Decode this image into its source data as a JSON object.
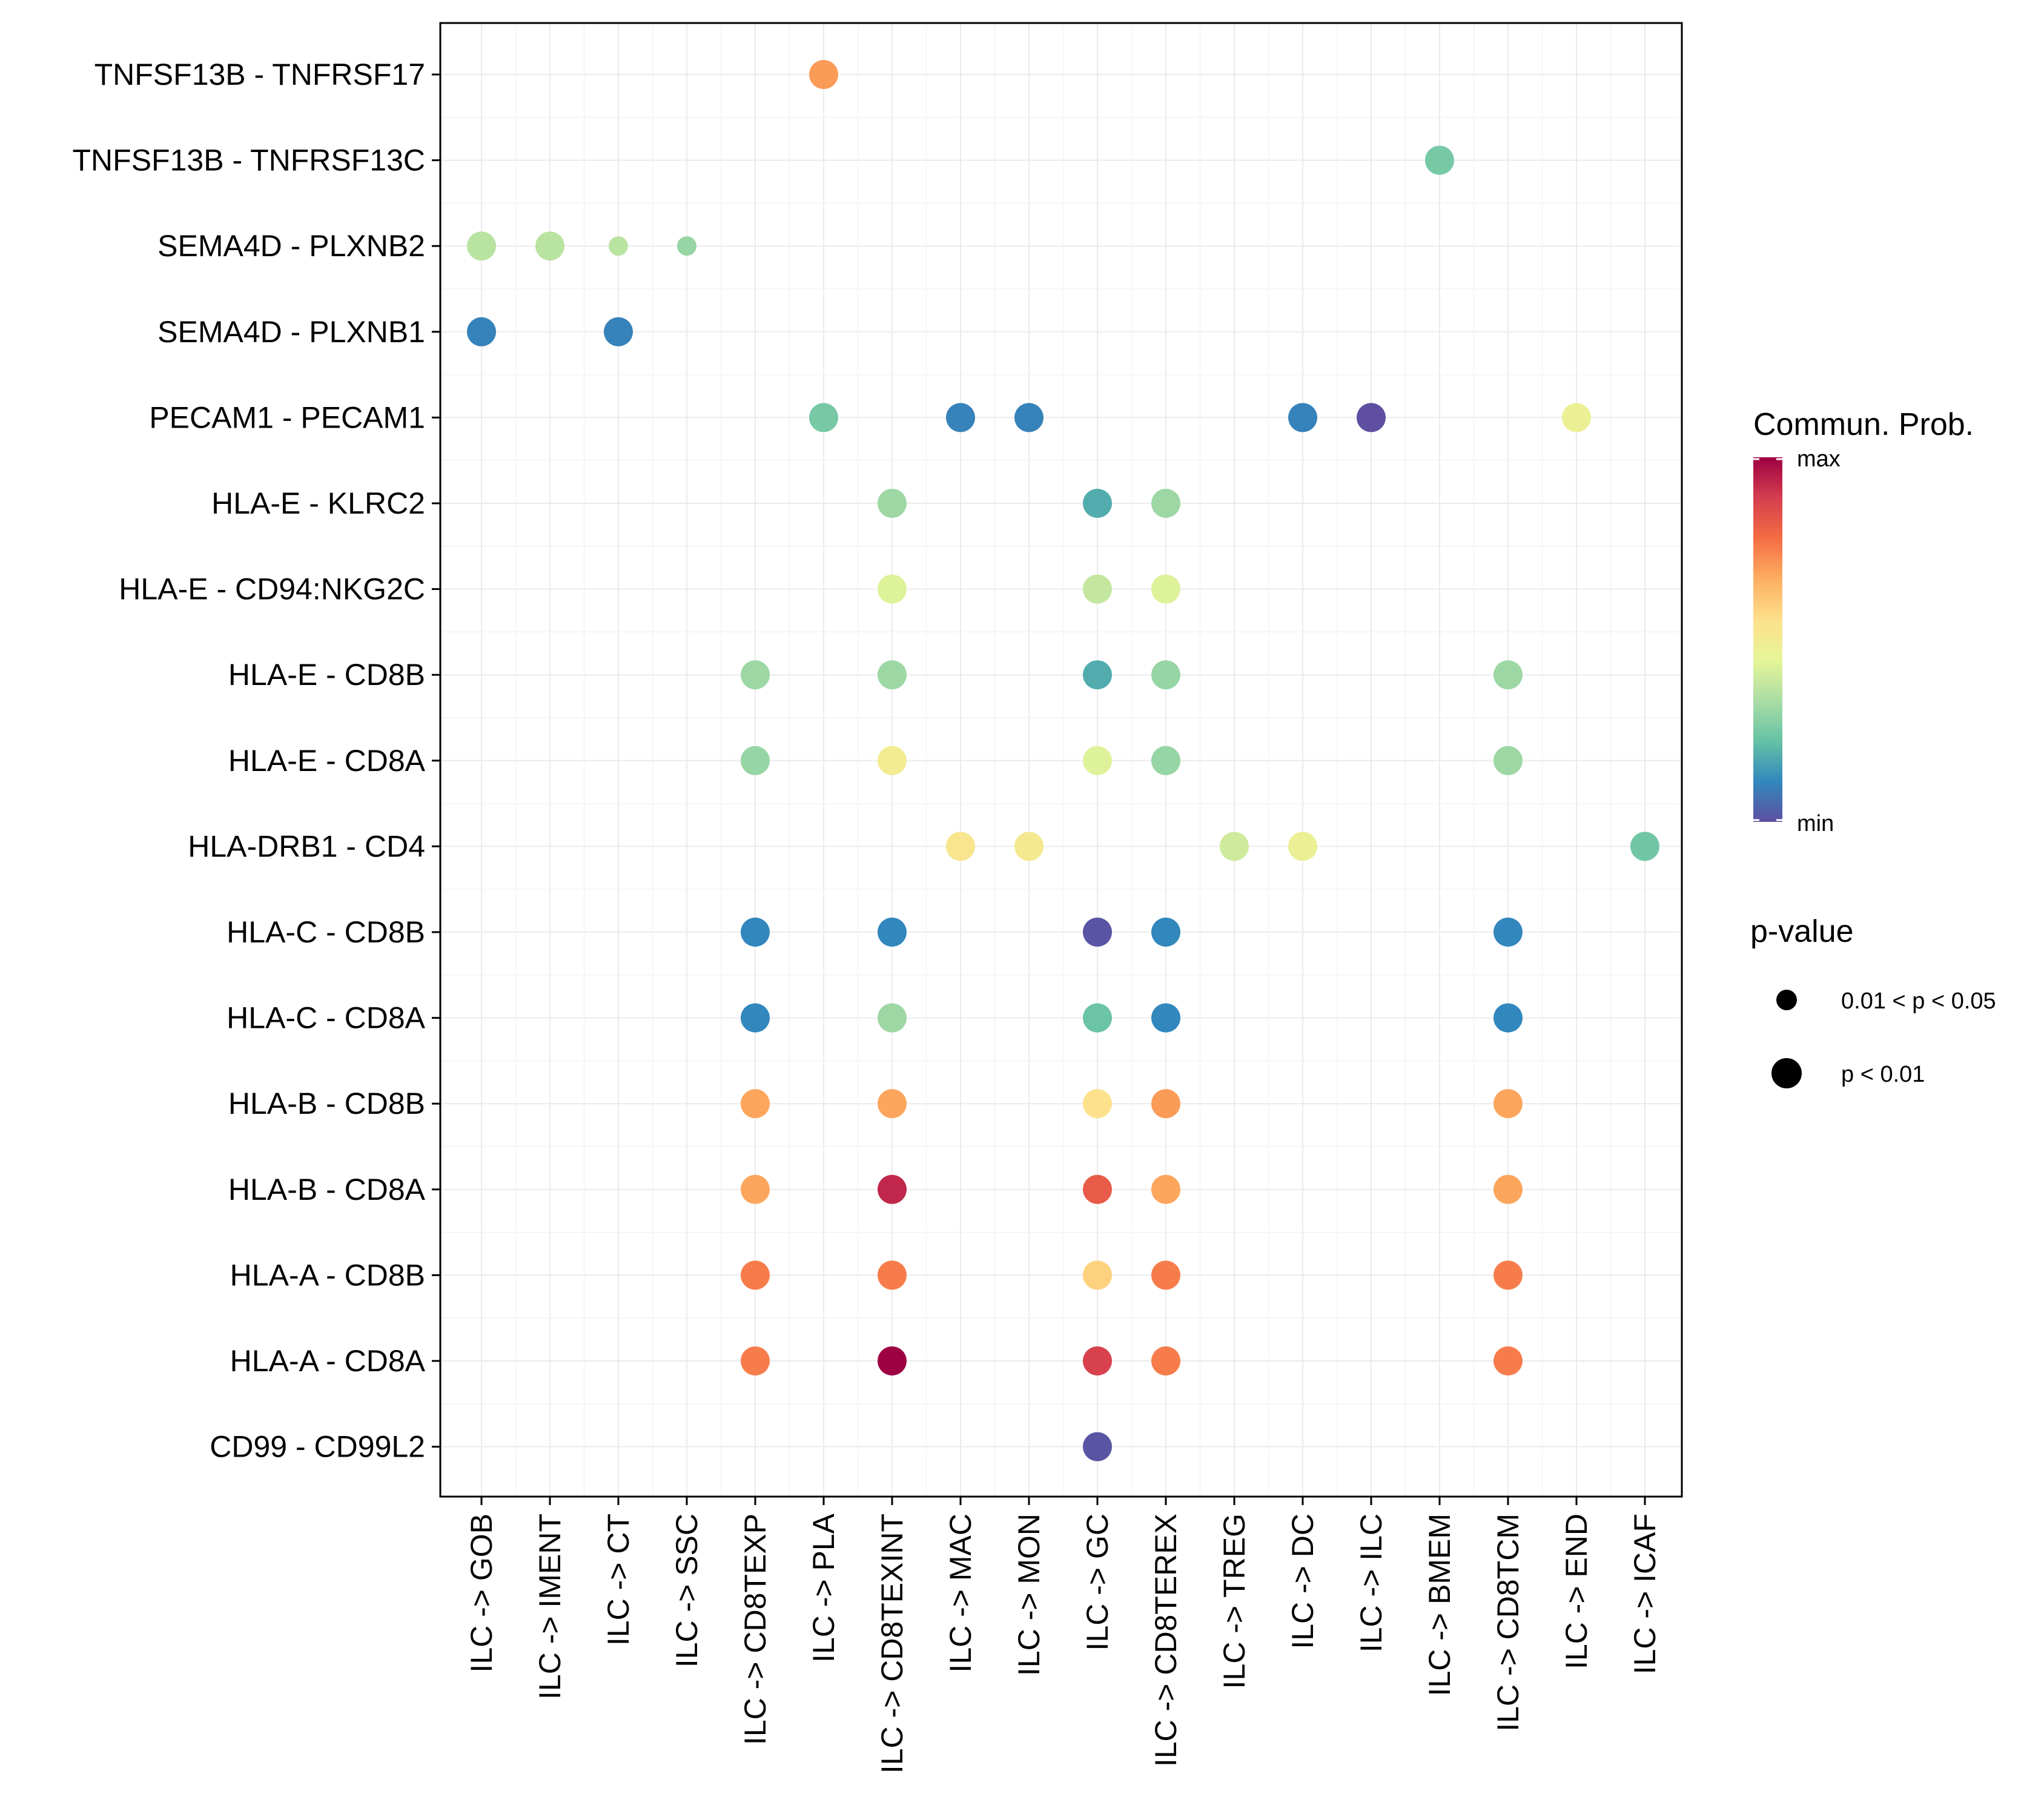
{
  "chart_data": {
    "type": "scatter",
    "subtype": "dot-matrix",
    "x_categories": [
      "ILC -> GOB",
      "ILC -> IMENT",
      "ILC -> CT",
      "ILC -> SSC",
      "ILC -> CD8TEXP",
      "ILC -> PLA",
      "ILC -> CD8TEXINT",
      "ILC -> MAC",
      "ILC -> MON",
      "ILC -> GC",
      "ILC -> CD8TEREX",
      "ILC -> TREG",
      "ILC -> DC",
      "ILC -> ILC",
      "ILC -> BMEM",
      "ILC -> CD8TCM",
      "ILC -> END",
      "ILC -> ICAF"
    ],
    "y_categories": [
      "TNFSF13B - TNFRSF17",
      "TNFSF13B - TNFRSF13C",
      "SEMA4D - PLXNB2",
      "SEMA4D - PLXNB1",
      "PECAM1 - PECAM1",
      "HLA-E - KLRC2",
      "HLA-E - CD94:NKG2C",
      "HLA-E - CD8B",
      "HLA-E - CD8A",
      "HLA-DRB1 - CD4",
      "HLA-C - CD8B",
      "HLA-C - CD8A",
      "HLA-B - CD8B",
      "HLA-B - CD8A",
      "HLA-A - CD8B",
      "HLA-A - CD8A",
      "CD99 - CD99L2"
    ],
    "color_scale": [
      "#5E4FA2",
      "#3288BD",
      "#66C2A5",
      "#ABDDA4",
      "#E6F598",
      "#FEE08B",
      "#FDAE61",
      "#F46D43",
      "#D53E4F",
      "#9E0142"
    ],
    "color_legend": {
      "title": "Commun. Prob.",
      "max_label": "max",
      "min_label": "min"
    },
    "size_legend": {
      "title": "p-value",
      "items": [
        {
          "label": "0.01 < p < 0.05",
          "size": "small"
        },
        {
          "label": "p < 0.01",
          "size": "large"
        }
      ]
    },
    "points": [
      {
        "x": "ILC -> PLA",
        "y": "TNFSF13B - TNFRSF17",
        "prob": 0.7,
        "size": "large"
      },
      {
        "x": "ILC -> BMEM",
        "y": "TNFSF13B - TNFRSF13C",
        "prob": 0.25,
        "size": "large"
      },
      {
        "x": "ILC -> GOB",
        "y": "SEMA4D - PLXNB2",
        "prob": 0.36,
        "size": "large"
      },
      {
        "x": "ILC -> IMENT",
        "y": "SEMA4D - PLXNB2",
        "prob": 0.36,
        "size": "large"
      },
      {
        "x": "ILC -> CT",
        "y": "SEMA4D - PLXNB2",
        "prob": 0.36,
        "size": "small"
      },
      {
        "x": "ILC -> SSC",
        "y": "SEMA4D - PLXNB2",
        "prob": 0.3,
        "size": "small"
      },
      {
        "x": "ILC -> GOB",
        "y": "SEMA4D - PLXNB1",
        "prob": 0.1,
        "size": "large"
      },
      {
        "x": "ILC -> CT",
        "y": "SEMA4D - PLXNB1",
        "prob": 0.1,
        "size": "large"
      },
      {
        "x": "ILC -> PLA",
        "y": "PECAM1 - PECAM1",
        "prob": 0.25,
        "size": "large"
      },
      {
        "x": "ILC -> MAC",
        "y": "PECAM1 - PECAM1",
        "prob": 0.1,
        "size": "large"
      },
      {
        "x": "ILC -> MON",
        "y": "PECAM1 - PECAM1",
        "prob": 0.1,
        "size": "large"
      },
      {
        "x": "ILC -> DC",
        "y": "PECAM1 - PECAM1",
        "prob": 0.1,
        "size": "large"
      },
      {
        "x": "ILC -> ILC",
        "y": "PECAM1 - PECAM1",
        "prob": 0.0,
        "size": "large"
      },
      {
        "x": "ILC -> END",
        "y": "PECAM1 - PECAM1",
        "prob": 0.47,
        "size": "large"
      },
      {
        "x": "ILC -> CD8TEXINT",
        "y": "HLA-E - KLRC2",
        "prob": 0.31,
        "size": "large"
      },
      {
        "x": "ILC -> GC",
        "y": "HLA-E - KLRC2",
        "prob": 0.18,
        "size": "large"
      },
      {
        "x": "ILC -> CD8TEREX",
        "y": "HLA-E - KLRC2",
        "prob": 0.31,
        "size": "large"
      },
      {
        "x": "ILC -> CD8TEXINT",
        "y": "HLA-E - CD94:NKG2C",
        "prob": 0.43,
        "size": "large"
      },
      {
        "x": "ILC -> GC",
        "y": "HLA-E - CD94:NKG2C",
        "prob": 0.38,
        "size": "large"
      },
      {
        "x": "ILC -> CD8TEREX",
        "y": "HLA-E - CD94:NKG2C",
        "prob": 0.43,
        "size": "large"
      },
      {
        "x": "ILC -> CD8TEXP",
        "y": "HLA-E - CD8B",
        "prob": 0.31,
        "size": "large"
      },
      {
        "x": "ILC -> CD8TEXINT",
        "y": "HLA-E - CD8B",
        "prob": 0.31,
        "size": "large"
      },
      {
        "x": "ILC -> GC",
        "y": "HLA-E - CD8B",
        "prob": 0.18,
        "size": "large"
      },
      {
        "x": "ILC -> CD8TEREX",
        "y": "HLA-E - CD8B",
        "prob": 0.3,
        "size": "large"
      },
      {
        "x": "ILC -> CD8TCM",
        "y": "HLA-E - CD8B",
        "prob": 0.31,
        "size": "large"
      },
      {
        "x": "ILC -> CD8TEXP",
        "y": "HLA-E - CD8A",
        "prob": 0.3,
        "size": "large"
      },
      {
        "x": "ILC -> CD8TEXINT",
        "y": "HLA-E - CD8A",
        "prob": 0.5,
        "size": "large"
      },
      {
        "x": "ILC -> GC",
        "y": "HLA-E - CD8A",
        "prob": 0.43,
        "size": "large"
      },
      {
        "x": "ILC -> CD8TEREX",
        "y": "HLA-E - CD8A",
        "prob": 0.3,
        "size": "large"
      },
      {
        "x": "ILC -> CD8TCM",
        "y": "HLA-E - CD8A",
        "prob": 0.31,
        "size": "large"
      },
      {
        "x": "ILC -> MAC",
        "y": "HLA-DRB1 - CD4",
        "prob": 0.53,
        "size": "large"
      },
      {
        "x": "ILC -> MON",
        "y": "HLA-DRB1 - CD4",
        "prob": 0.51,
        "size": "large"
      },
      {
        "x": "ILC -> TREG",
        "y": "HLA-DRB1 - CD4",
        "prob": 0.4,
        "size": "large"
      },
      {
        "x": "ILC -> DC",
        "y": "HLA-DRB1 - CD4",
        "prob": 0.47,
        "size": "large"
      },
      {
        "x": "ILC -> ICAF",
        "y": "HLA-DRB1 - CD4",
        "prob": 0.24,
        "size": "large"
      },
      {
        "x": "ILC -> CD8TEXP",
        "y": "HLA-C - CD8B",
        "prob": 0.11,
        "size": "large"
      },
      {
        "x": "ILC -> CD8TEXINT",
        "y": "HLA-C - CD8B",
        "prob": 0.11,
        "size": "large"
      },
      {
        "x": "ILC -> GC",
        "y": "HLA-C - CD8B",
        "prob": 0.01,
        "size": "large"
      },
      {
        "x": "ILC -> CD8TEREX",
        "y": "HLA-C - CD8B",
        "prob": 0.11,
        "size": "large"
      },
      {
        "x": "ILC -> CD8TCM",
        "y": "HLA-C - CD8B",
        "prob": 0.11,
        "size": "large"
      },
      {
        "x": "ILC -> CD8TEXP",
        "y": "HLA-C - CD8A",
        "prob": 0.11,
        "size": "large"
      },
      {
        "x": "ILC -> CD8TEXINT",
        "y": "HLA-C - CD8A",
        "prob": 0.31,
        "size": "large"
      },
      {
        "x": "ILC -> GC",
        "y": "HLA-C - CD8A",
        "prob": 0.23,
        "size": "large"
      },
      {
        "x": "ILC -> CD8TEREX",
        "y": "HLA-C - CD8A",
        "prob": 0.11,
        "size": "large"
      },
      {
        "x": "ILC -> CD8TCM",
        "y": "HLA-C - CD8A",
        "prob": 0.11,
        "size": "large"
      },
      {
        "x": "ILC -> CD8TEXP",
        "y": "HLA-B - CD8B",
        "prob": 0.68,
        "size": "large"
      },
      {
        "x": "ILC -> CD8TEXINT",
        "y": "HLA-B - CD8B",
        "prob": 0.68,
        "size": "large"
      },
      {
        "x": "ILC -> GC",
        "y": "HLA-B - CD8B",
        "prob": 0.55,
        "size": "large"
      },
      {
        "x": "ILC -> CD8TEREX",
        "y": "HLA-B - CD8B",
        "prob": 0.7,
        "size": "large"
      },
      {
        "x": "ILC -> CD8TCM",
        "y": "HLA-B - CD8B",
        "prob": 0.68,
        "size": "large"
      },
      {
        "x": "ILC -> CD8TEXP",
        "y": "HLA-B - CD8A",
        "prob": 0.68,
        "size": "large"
      },
      {
        "x": "ILC -> CD8TEXINT",
        "y": "HLA-B - CD8A",
        "prob": 0.93,
        "size": "large"
      },
      {
        "x": "ILC -> GC",
        "y": "HLA-B - CD8A",
        "prob": 0.82,
        "size": "large"
      },
      {
        "x": "ILC -> CD8TEREX",
        "y": "HLA-B - CD8A",
        "prob": 0.68,
        "size": "large"
      },
      {
        "x": "ILC -> CD8TCM",
        "y": "HLA-B - CD8A",
        "prob": 0.68,
        "size": "large"
      },
      {
        "x": "ILC -> CD8TEXP",
        "y": "HLA-A - CD8B",
        "prob": 0.75,
        "size": "large"
      },
      {
        "x": "ILC -> CD8TEXINT",
        "y": "HLA-A - CD8B",
        "prob": 0.75,
        "size": "large"
      },
      {
        "x": "ILC -> GC",
        "y": "HLA-A - CD8B",
        "prob": 0.59,
        "size": "large"
      },
      {
        "x": "ILC -> CD8TEREX",
        "y": "HLA-A - CD8B",
        "prob": 0.75,
        "size": "large"
      },
      {
        "x": "ILC -> CD8TCM",
        "y": "HLA-A - CD8B",
        "prob": 0.75,
        "size": "large"
      },
      {
        "x": "ILC -> CD8TEXP",
        "y": "HLA-A - CD8A",
        "prob": 0.75,
        "size": "large"
      },
      {
        "x": "ILC -> CD8TEXINT",
        "y": "HLA-A - CD8A",
        "prob": 1.0,
        "size": "large"
      },
      {
        "x": "ILC -> GC",
        "y": "HLA-A - CD8A",
        "prob": 0.88,
        "size": "large"
      },
      {
        "x": "ILC -> CD8TEREX",
        "y": "HLA-A - CD8A",
        "prob": 0.75,
        "size": "large"
      },
      {
        "x": "ILC -> CD8TCM",
        "y": "HLA-A - CD8A",
        "prob": 0.75,
        "size": "large"
      },
      {
        "x": "ILC -> GC",
        "y": "CD99 - CD99L2",
        "prob": 0.01,
        "size": "large"
      }
    ]
  }
}
